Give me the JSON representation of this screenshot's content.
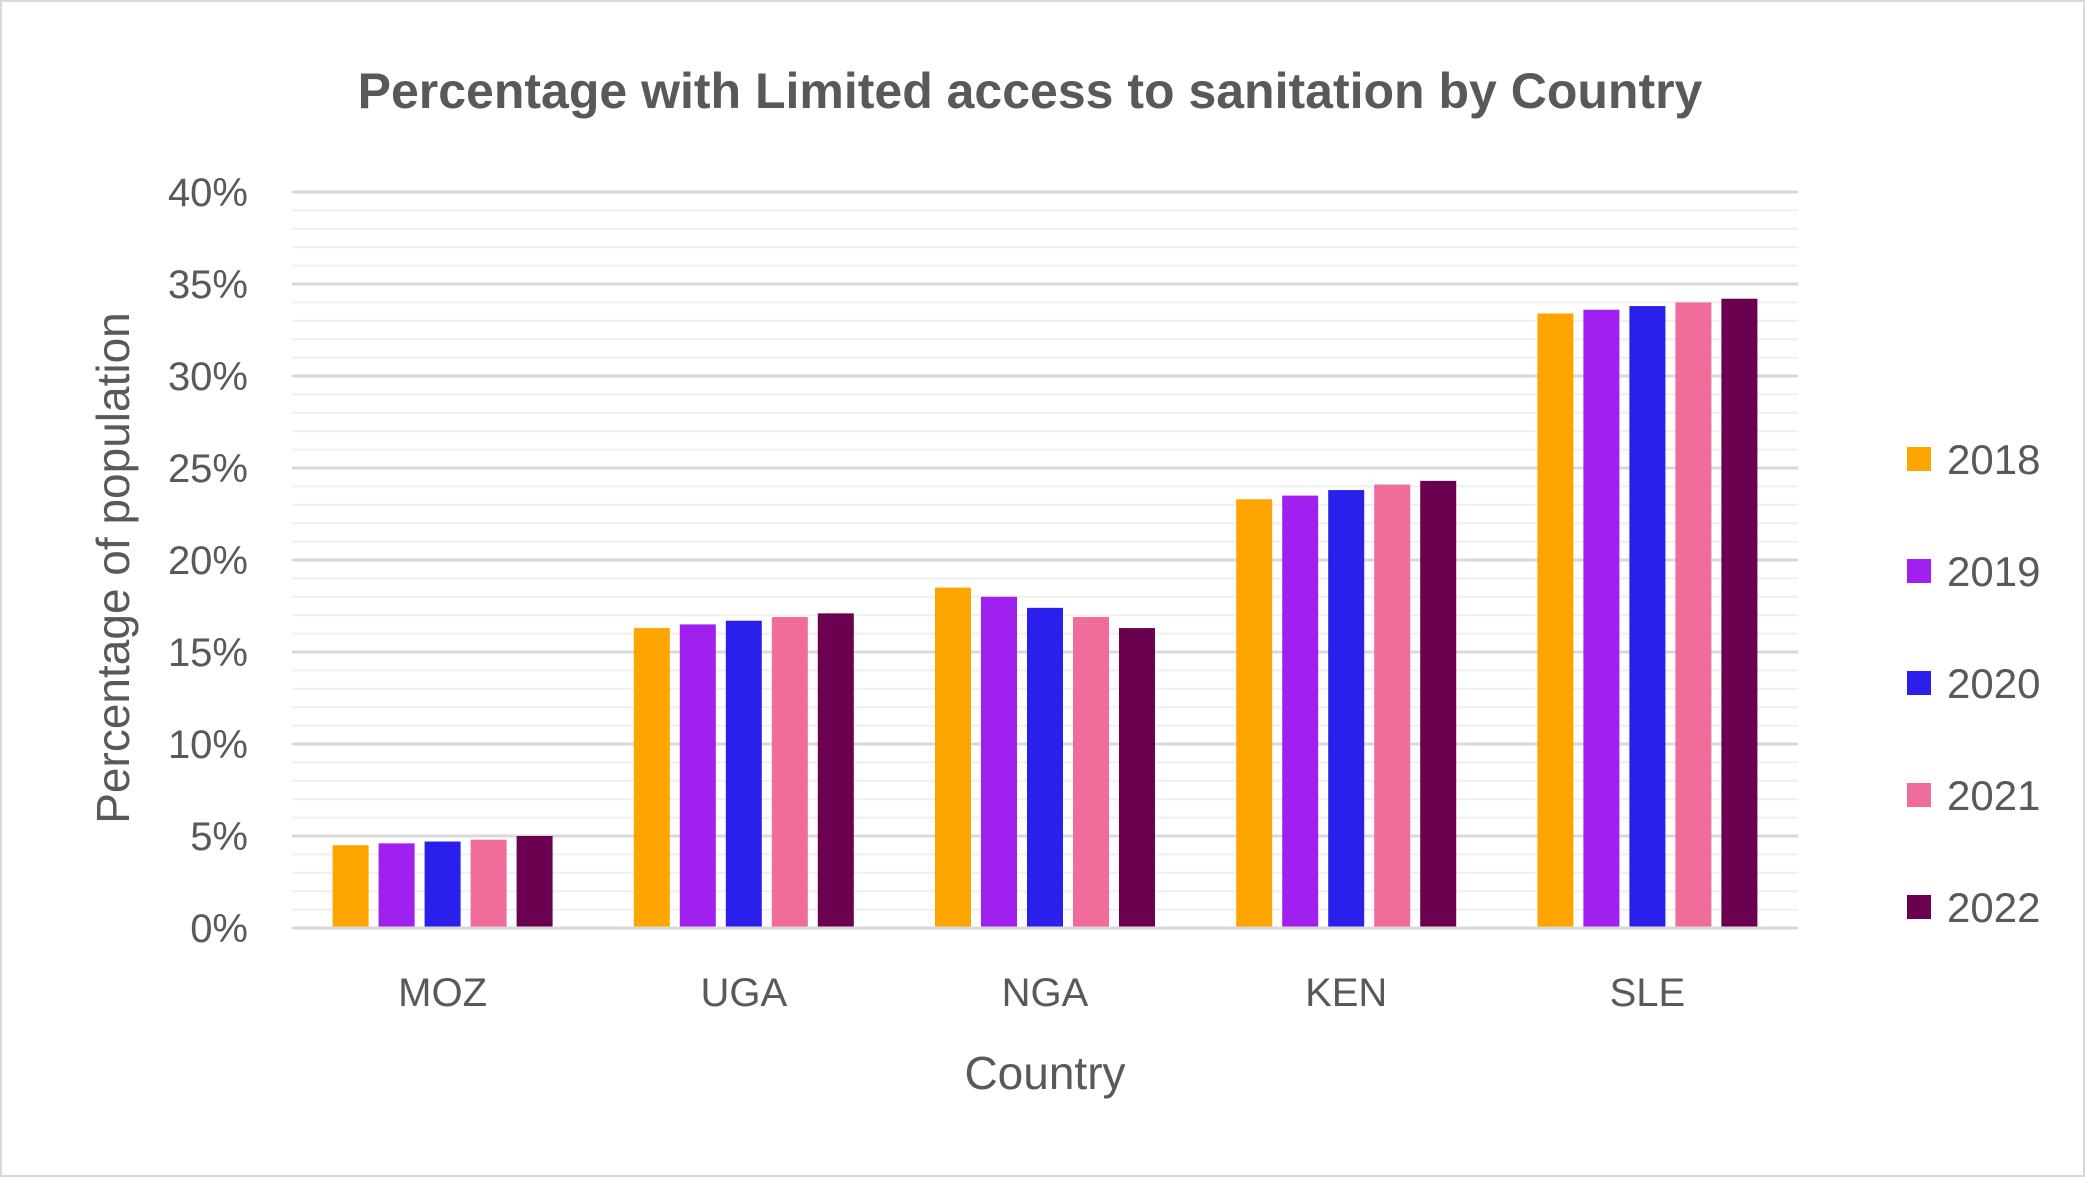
{
  "chart_data": {
    "type": "bar",
    "title": "Percentage with Limited access to sanitation by Country",
    "xlabel": "Country",
    "ylabel": "Percentage of population",
    "categories": [
      "MOZ",
      "UGA",
      "NGA",
      "KEN",
      "SLE"
    ],
    "series": [
      {
        "name": "2018",
        "color": "#FFA500",
        "values": [
          4.5,
          16.3,
          18.5,
          23.3,
          33.4
        ]
      },
      {
        "name": "2019",
        "color": "#A020F0",
        "values": [
          4.6,
          16.5,
          18.0,
          23.5,
          33.6
        ]
      },
      {
        "name": "2020",
        "color": "#2B1FEB",
        "values": [
          4.7,
          16.7,
          17.4,
          23.8,
          33.8
        ]
      },
      {
        "name": "2021",
        "color": "#F06C9B",
        "values": [
          4.8,
          16.9,
          16.9,
          24.1,
          34.0
        ]
      },
      {
        "name": "2022",
        "color": "#6B0050",
        "values": [
          5.0,
          17.1,
          16.3,
          24.3,
          34.2
        ]
      }
    ],
    "y_ticks": [
      "0%",
      "5%",
      "10%",
      "15%",
      "20%",
      "25%",
      "30%",
      "35%",
      "40%"
    ],
    "ylim": [
      0,
      40
    ],
    "y_unit": "%",
    "grid": true,
    "minor_grid": true,
    "legend_position": "right"
  }
}
